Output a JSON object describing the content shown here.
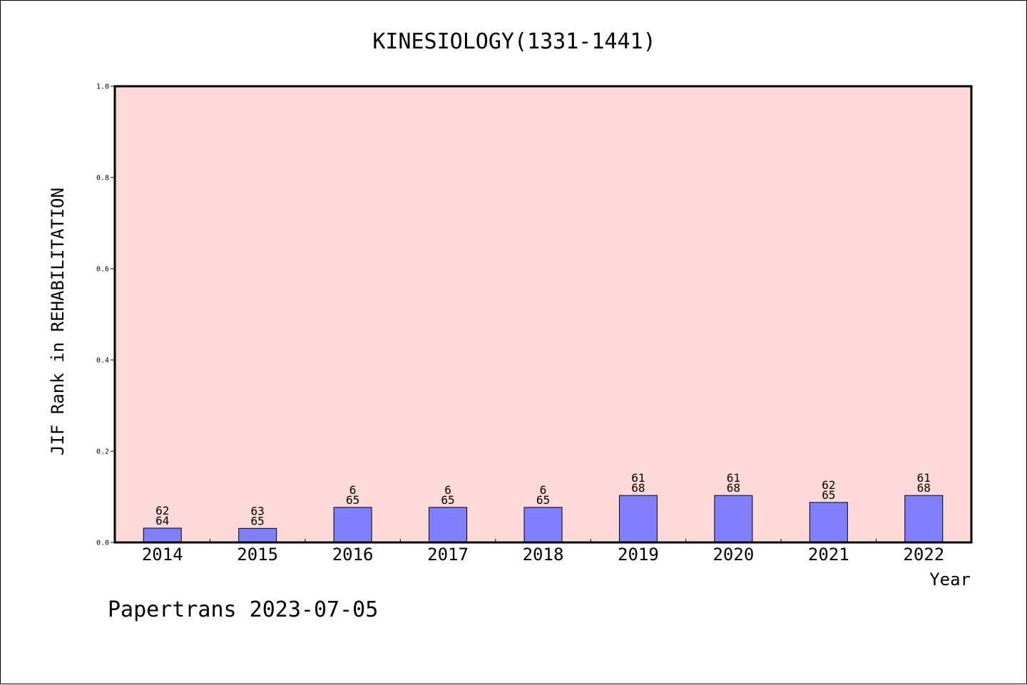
{
  "chart_data": {
    "type": "bar",
    "title": "KINESIOLOGY(1331-1441)",
    "xlabel": "Year",
    "ylabel": "JIF Rank in REHABILITATION",
    "ylim": [
      0,
      1.0
    ],
    "yticks": [
      "0.0",
      "0.2",
      "0.4",
      "0.6",
      "0.8",
      "1.0"
    ],
    "categories": [
      "2014",
      "2015",
      "2016",
      "2017",
      "2018",
      "2019",
      "2020",
      "2021",
      "2022"
    ],
    "values": [
      0.0313,
      0.0308,
      0.0769,
      0.0769,
      0.0769,
      0.1029,
      0.1029,
      0.0877,
      0.1029
    ],
    "rank_labels": [
      [
        "62",
        "64"
      ],
      [
        "63",
        "65"
      ],
      [
        "6",
        "65"
      ],
      [
        "6",
        "65"
      ],
      [
        "6",
        "65"
      ],
      [
        "61",
        "68"
      ],
      [
        "61",
        "68"
      ],
      [
        "62",
        "65"
      ],
      [
        "61",
        "68"
      ]
    ],
    "colors": {
      "plot_background": "#fddad7",
      "bar_fill": "#8080ff",
      "bar_stroke": "#000000"
    },
    "grid": false,
    "legend": "none"
  },
  "footer": {
    "text": "Papertrans 2023-07-05"
  }
}
